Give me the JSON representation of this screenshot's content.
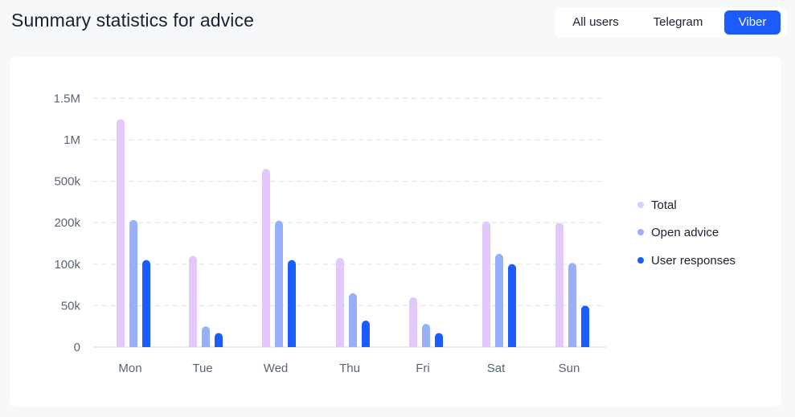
{
  "header": {
    "title": "Summary statistics for advice"
  },
  "filters": {
    "selected": "Viber",
    "options": [
      {
        "label": "All users"
      },
      {
        "label": "Telegram"
      },
      {
        "label": "Viber"
      }
    ]
  },
  "colors": {
    "total": "#e2c8fb",
    "open_advice": "#97b0fd",
    "user_responses": "#1a5cff",
    "grid": "#e2e5eb",
    "axis": "#e2e5eb",
    "accent": "#1a5cff"
  },
  "chart_data": {
    "type": "bar",
    "title": "",
    "xlabel": "",
    "ylabel": "",
    "categories": [
      "Mon",
      "Tue",
      "Wed",
      "Thu",
      "Fri",
      "Sat",
      "Sun"
    ],
    "y_ticks": [
      "0",
      "50k",
      "100k",
      "200k",
      "500k",
      "1M",
      "1.5M"
    ],
    "y_tick_values": [
      0,
      50000,
      100000,
      200000,
      500000,
      1000000,
      1500000
    ],
    "y_scale": "piecewise (equal spacing between tick labels)",
    "grid": true,
    "legend_position": "right",
    "series": [
      {
        "name": "Total",
        "values": [
          1250000,
          120000,
          650000,
          115000,
          60000,
          210000,
          200000
        ]
      },
      {
        "name": "Open advice",
        "values": [
          220000,
          25000,
          215000,
          65000,
          28000,
          125000,
          103000
        ]
      },
      {
        "name": "User responses",
        "values": [
          110000,
          17000,
          110000,
          32000,
          17000,
          100000,
          50000
        ]
      }
    ]
  }
}
